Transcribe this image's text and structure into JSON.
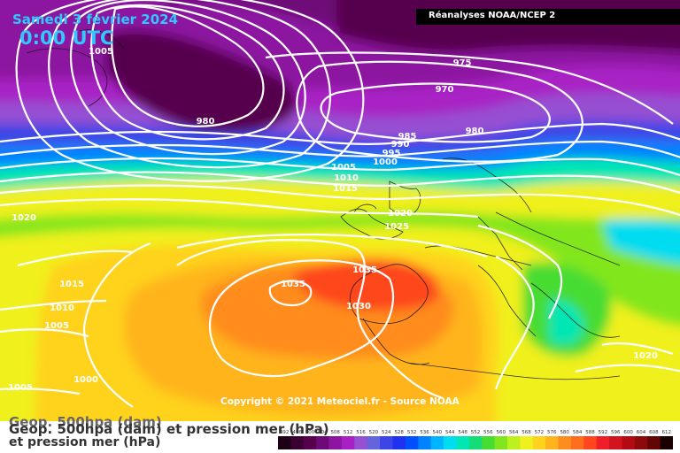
{
  "header": {
    "date": "Samedi 3 février 2024",
    "time": "0:00 UTC",
    "source": "Réanalyses NOAA/NCEP 2"
  },
  "copyright": "Copyright © 2021 Meteociel.fr - Source NOAA",
  "legend": {
    "line1": "Geop. 500hpa (dam) et pression mer (hPa)",
    "ghost": "Geop. 500hpa (dam)",
    "line2": "et pression mer (hPa)"
  },
  "color_scale": {
    "ticks": [
      "492",
      "496",
      "500",
      "504",
      "508",
      "512",
      "516",
      "520",
      "524",
      "528",
      "532",
      "536",
      "540",
      "544",
      "548",
      "552",
      "556",
      "560",
      "564",
      "568",
      "572",
      "576",
      "580",
      "584",
      "588",
      "592",
      "596",
      "600",
      "604",
      "608",
      "612"
    ],
    "colors": [
      "#1e0014",
      "#3a0032",
      "#56004e",
      "#6e0a78",
      "#8c16a0",
      "#a820c4",
      "#9650d2",
      "#6464dc",
      "#3c46e6",
      "#1e32f0",
      "#0050ff",
      "#0082ff",
      "#00b4ff",
      "#00dcf0",
      "#00e6b4",
      "#14dc78",
      "#46dc32",
      "#82e61e",
      "#bef01e",
      "#f0f01e",
      "#ffd21e",
      "#ffb41e",
      "#ff8c1e",
      "#ff6e1e",
      "#ff461e",
      "#f01e28",
      "#d2141e",
      "#b40a14",
      "#8c0a0a",
      "#640505",
      "#1a0000"
    ]
  },
  "isobar_labels": [
    {
      "text": "1005",
      "level": "1005"
    },
    {
      "text": "975",
      "level": "975"
    },
    {
      "text": "970",
      "level": "970"
    },
    {
      "text": "980",
      "level": "980-west"
    },
    {
      "text": "980",
      "level": "980-east"
    },
    {
      "text": "985",
      "level": "985"
    },
    {
      "text": "990",
      "level": "990"
    },
    {
      "text": "995",
      "level": "995"
    },
    {
      "text": "1000",
      "level": "1000"
    },
    {
      "text": "1005",
      "level": "1005-c"
    },
    {
      "text": "1010",
      "level": "1010"
    },
    {
      "text": "1015",
      "level": "1015"
    },
    {
      "text": "1020",
      "level": "1020-w"
    },
    {
      "text": "1020",
      "level": "1020-c"
    },
    {
      "text": "1025",
      "level": "1025"
    },
    {
      "text": "1035",
      "level": "1035-a"
    },
    {
      "text": "1035",
      "level": "1035-b"
    },
    {
      "text": "1030",
      "level": "1030"
    },
    {
      "text": "1015",
      "level": "1015-w"
    },
    {
      "text": "1010",
      "level": "1010-w"
    },
    {
      "text": "1005",
      "level": "1005-w"
    },
    {
      "text": "1005",
      "level": "1005-sw"
    },
    {
      "text": "1000",
      "level": "1000-s"
    },
    {
      "text": "1020",
      "level": "1020-e"
    }
  ]
}
